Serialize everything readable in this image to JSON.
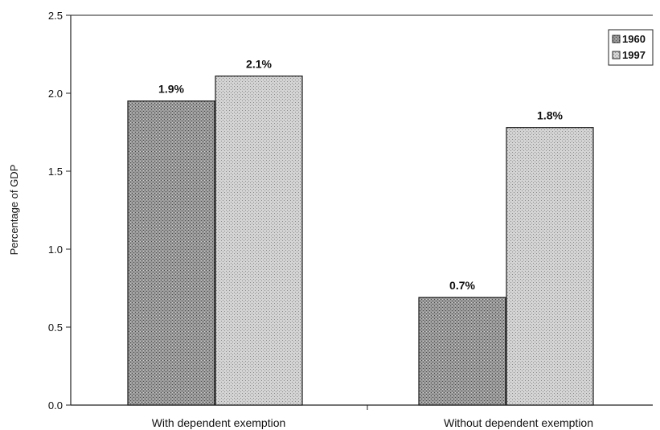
{
  "chart_data": {
    "type": "bar",
    "title": "",
    "xlabel": "",
    "ylabel": "Percentage of GDP",
    "categories": [
      "With dependent exemption",
      "Without dependent exemption"
    ],
    "series": [
      {
        "name": "1960",
        "values": [
          1.95,
          0.69
        ],
        "data_labels": [
          "1.9%",
          "0.7%"
        ],
        "color": "#8f8f8f",
        "pattern": "dark-stipple"
      },
      {
        "name": "1997",
        "values": [
          2.11,
          1.78
        ],
        "data_labels": [
          "2.1%",
          "1.8%"
        ],
        "color": "#c9c9c9",
        "pattern": "light-stipple"
      }
    ],
    "ylim": [
      0,
      2.5
    ],
    "yticks": [
      "0.0",
      "0.5",
      "1.0",
      "1.5",
      "2.0",
      "2.5"
    ],
    "grid": false,
    "legend": "top-right"
  }
}
